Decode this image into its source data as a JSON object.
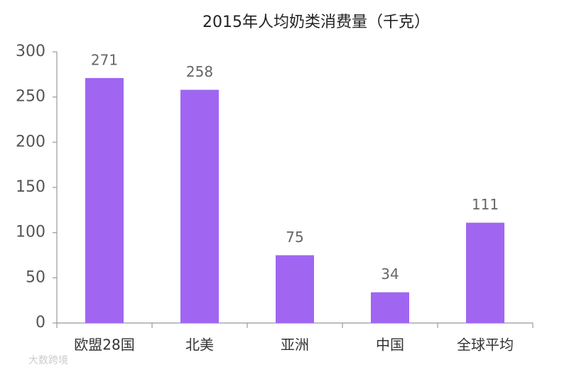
{
  "chart_data": {
    "type": "bar",
    "title": "2015年人均奶类消费量（千克）",
    "categories": [
      "欧盟28国",
      "北美",
      "亚洲",
      "中国",
      "全球平均"
    ],
    "values": [
      271,
      258,
      75,
      34,
      111
    ],
    "color": "#a066f2",
    "ylim": [
      0,
      300
    ],
    "yticks": [
      0,
      50,
      100,
      150,
      200,
      250,
      300
    ],
    "grid": false,
    "source_logo": "大数跨境"
  }
}
